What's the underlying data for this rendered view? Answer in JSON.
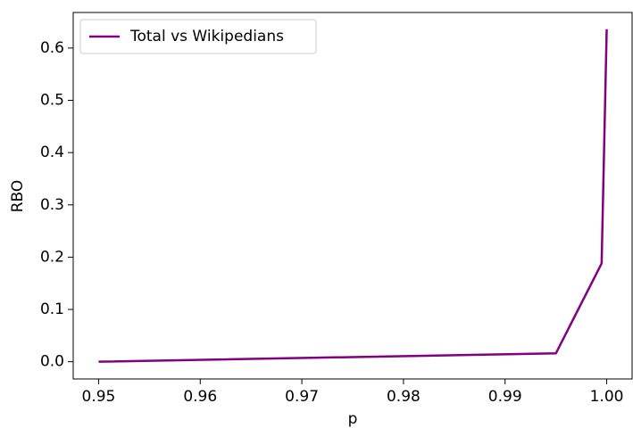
{
  "chart_data": {
    "type": "line",
    "x_label": "p",
    "y_label": "RBO",
    "series": [
      {
        "name": "Total vs Wikipedians",
        "color": "#800080",
        "x": [
          0.95,
          0.995,
          0.9995,
          1.0
        ],
        "values": [
          0.0,
          0.016,
          0.188,
          0.636
        ]
      }
    ],
    "xlim": [
      0.9475,
      1.0025
    ],
    "xticks": [
      0.95,
      0.96,
      0.97,
      0.98,
      0.99,
      {
        "value": 1.0,
        "label": "1.00"
      }
    ],
    "ylim": [
      -0.033,
      0.668
    ],
    "yticks": [
      {
        "value": 0,
        "label": "0.0"
      },
      0.1,
      0.2,
      0.3,
      0.4,
      0.5,
      0.6
    ],
    "legend": "upper left",
    "grid": false
  }
}
